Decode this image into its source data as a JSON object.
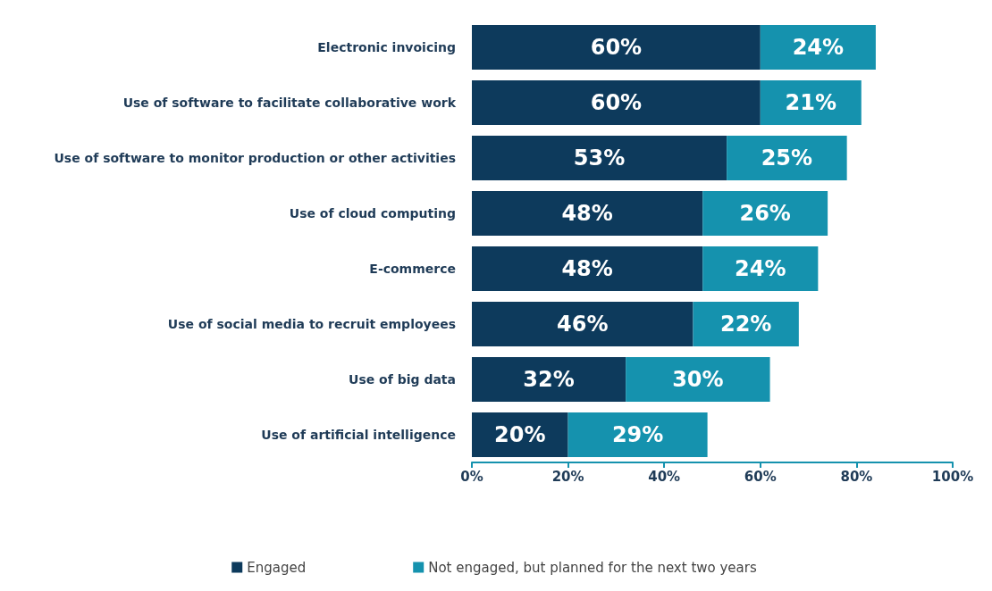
{
  "chart_data": {
    "type": "bar",
    "orientation": "horizontal",
    "stacked": true,
    "categories": [
      "Electronic invoicing",
      "Use of software to facilitate collaborative work",
      "Use of software to monitor production or other activities",
      "Use of cloud computing",
      "E-commerce",
      "Use of social media to recruit employees",
      "Use of big data",
      "Use of artificial intelligence"
    ],
    "series": [
      {
        "name": "Engaged",
        "color": "#0d3a5c",
        "values": [
          60,
          60,
          53,
          48,
          48,
          46,
          32,
          20
        ],
        "value_labels": [
          "60%",
          "60%",
          "53%",
          "48%",
          "48%",
          "46%",
          "32%",
          "20%"
        ]
      },
      {
        "name": "Not engaged, but planned for the next two years",
        "color": "#1592ae",
        "values": [
          24,
          21,
          25,
          26,
          24,
          22,
          30,
          29
        ],
        "value_labels": [
          "24%",
          "21%",
          "25%",
          "26%",
          "24%",
          "22%",
          "30%",
          "29%"
        ]
      }
    ],
    "xlim": [
      0,
      100
    ],
    "xticks": [
      {
        "value": 0,
        "label": "0%"
      },
      {
        "value": 20,
        "label": "20%"
      },
      {
        "value": 40,
        "label": "40%"
      },
      {
        "value": 60,
        "label": "60%"
      },
      {
        "value": 80,
        "label": "80%"
      },
      {
        "value": 100,
        "label": "100%"
      }
    ],
    "grid": false,
    "legend": "bottom"
  }
}
